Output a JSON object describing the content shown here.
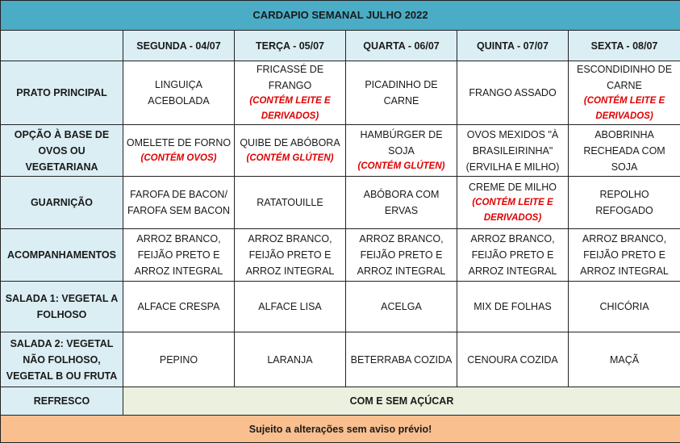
{
  "title": "CARDAPIO SEMANAL JULHO 2022",
  "days": [
    "SEGUNDA - 04/07",
    "TERÇA - 05/07",
    "QUARTA - 06/07",
    "QUINTA - 07/07",
    "SEXTA - 08/07"
  ],
  "rows": [
    {
      "label": "PRATO PRINCIPAL",
      "cells": [
        {
          "text": "LINGUIÇA ACEBOLADA"
        },
        {
          "text": "FRICASSÉ DE FRANGO",
          "note": "(CONTÉM LEITE E DERIVADOS)"
        },
        {
          "text": "PICADINHO DE CARNE"
        },
        {
          "text": "FRANGO ASSADO"
        },
        {
          "text": "ESCONDIDINHO DE CARNE",
          "note": "(CONTÉM LEITE E DERIVADOS)"
        }
      ]
    },
    {
      "label": "OPÇÃO À BASE DE OVOS OU VEGETARIANA",
      "cells": [
        {
          "text": "OMELETE DE FORNO",
          "note": "(CONTÉM OVOS)"
        },
        {
          "text": "QUIBE DE ABÓBORA",
          "note": "(CONTÉM GLÚTEN)"
        },
        {
          "text": "HAMBÚRGER DE SOJA",
          "note": "(CONTÉM GLÚTEN)"
        },
        {
          "text": "OVOS MEXIDOS \"À BRASILEIRINHA\" (ERVILHA E MILHO)"
        },
        {
          "text": "ABOBRINHA RECHEADA COM SOJA"
        }
      ]
    },
    {
      "label": "GUARNIÇÃO",
      "cells": [
        {
          "text": "FAROFA DE BACON/ FAROFA SEM BACON"
        },
        {
          "text": "RATATOUILLE"
        },
        {
          "text": "ABÓBORA COM ERVAS"
        },
        {
          "text": "CREME DE MILHO",
          "note": "(CONTÉM LEITE E DERIVADOS)"
        },
        {
          "text": "REPOLHO REFOGADO"
        }
      ]
    },
    {
      "label": "ACOMPANHAMENTOS",
      "cells": [
        {
          "text": "ARROZ BRANCO, FEIJÃO PRETO E ARROZ INTEGRAL"
        },
        {
          "text": "ARROZ BRANCO, FEIJÃO PRETO E ARROZ INTEGRAL"
        },
        {
          "text": "ARROZ BRANCO, FEIJÃO PRETO E ARROZ INTEGRAL"
        },
        {
          "text": "ARROZ BRANCO, FEIJÃO PRETO E ARROZ INTEGRAL"
        },
        {
          "text": "ARROZ BRANCO, FEIJÃO PRETO E ARROZ INTEGRAL"
        }
      ]
    },
    {
      "label": "SALADA 1: VEGETAL A FOLHOSO",
      "cells": [
        {
          "text": "ALFACE CRESPA"
        },
        {
          "text": "ALFACE LISA"
        },
        {
          "text": "ACELGA"
        },
        {
          "text": "MIX DE FOLHAS"
        },
        {
          "text": "CHICÓRIA"
        }
      ]
    },
    {
      "label": "SALADA 2: VEGETAL NÃO FOLHOSO, VEGETAL B OU FRUTA",
      "cells": [
        {
          "text": "PEPINO"
        },
        {
          "text": "LARANJA"
        },
        {
          "text": "BETERRABA COZIDA"
        },
        {
          "text": "CENOURA COZIDA"
        },
        {
          "text": "MAÇÃ"
        }
      ]
    }
  ],
  "refresco": {
    "label": "REFRESCO",
    "value": "COM E SEM AÇÚCAR"
  },
  "footer": "Sujeito a alterações sem aviso prévio!",
  "colors": {
    "title_bg": "#4bacc6",
    "header_bg": "#daeef3",
    "refresco_bg": "#ebf1de",
    "footer_bg": "#fabf8f",
    "note": "#e00000"
  }
}
